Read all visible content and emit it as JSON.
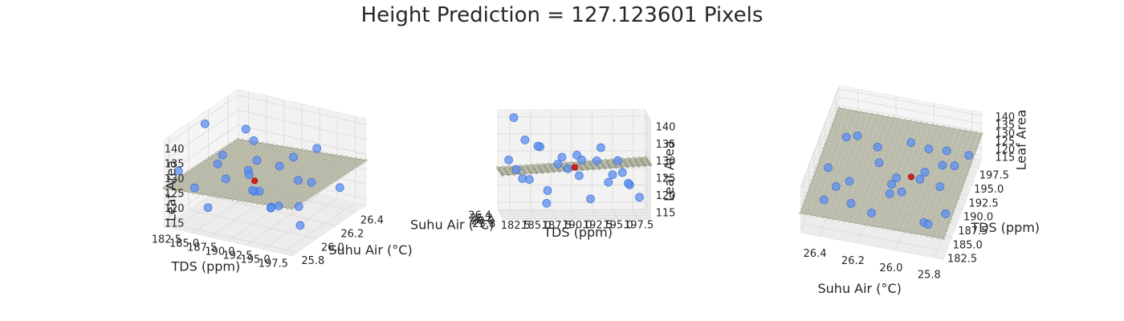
{
  "chart_data": {
    "type": "scatter",
    "title": "Height Prediction = 127.123601 Pixels",
    "xlabel": "Suhu Air (°C)",
    "ylabel": "TDS (ppm)",
    "zlabel": "Leaf Area",
    "xlim": [
      25.75,
      26.5
    ],
    "ylim": [
      181.0,
      199.0
    ],
    "zlim": [
      113,
      142
    ],
    "x_ticks": [
      "26.4",
      "26.2",
      "26.0",
      "25.8"
    ],
    "y_ticks": [
      "182.5",
      "185.0",
      "187.5",
      "190.0",
      "192.5",
      "195.0",
      "197.5"
    ],
    "z_ticks": [
      "140",
      "135",
      "130",
      "125",
      "120",
      "115"
    ],
    "grid": true,
    "prediction_plane": {
      "description_color": "#b8b8a8",
      "edge_color": "#7a7a6a",
      "z_at_corners": {
        "x_lo_y_lo": 126.0,
        "x_hi_y_lo": 125.2,
        "x_lo_y_hi": 128.8,
        "x_hi_y_hi": 128.0
      }
    },
    "series": [
      {
        "marker_color": "#5b8ef0",
        "points": [
          {
            "x": 26.05,
            "y": 182.6,
            "z": 141.5
          },
          {
            "x": 26.35,
            "y": 184.2,
            "z": 133.8
          },
          {
            "x": 26.3,
            "y": 186.0,
            "z": 132.0
          },
          {
            "x": 26.02,
            "y": 185.5,
            "z": 133.3
          },
          {
            "x": 25.95,
            "y": 190.2,
            "z": 130.9
          },
          {
            "x": 25.85,
            "y": 188.3,
            "z": 130.7
          },
          {
            "x": 25.82,
            "y": 192.5,
            "z": 129.8
          },
          {
            "x": 26.4,
            "y": 193.5,
            "z": 131.3
          },
          {
            "x": 25.78,
            "y": 195.6,
            "z": 126.5
          },
          {
            "x": 26.2,
            "y": 191.0,
            "z": 128.5
          },
          {
            "x": 26.1,
            "y": 188.0,
            "z": 127.7
          },
          {
            "x": 26.45,
            "y": 189.5,
            "z": 125.0
          },
          {
            "x": 25.9,
            "y": 194.0,
            "z": 123.2
          },
          {
            "x": 26.0,
            "y": 196.5,
            "z": 122.5
          },
          {
            "x": 25.88,
            "y": 183.5,
            "z": 124.4
          },
          {
            "x": 26.25,
            "y": 194.8,
            "z": 124.0
          },
          {
            "x": 26.15,
            "y": 183.0,
            "z": 126.0
          },
          {
            "x": 25.8,
            "y": 186.5,
            "z": 121.2
          },
          {
            "x": 26.38,
            "y": 197.0,
            "z": 120.5
          },
          {
            "x": 25.92,
            "y": 197.8,
            "z": 118.7
          },
          {
            "x": 26.12,
            "y": 192.0,
            "z": 117.5
          },
          {
            "x": 26.3,
            "y": 186.8,
            "z": 115.5
          },
          {
            "x": 25.98,
            "y": 190.5,
            "z": 124.8
          },
          {
            "x": 26.08,
            "y": 195.3,
            "z": 128.8
          },
          {
            "x": 26.42,
            "y": 184.8,
            "z": 122.0
          },
          {
            "x": 25.84,
            "y": 181.8,
            "z": 130.0
          }
        ]
      },
      {
        "name": "",
        "marker_color": "#d62020",
        "points": [
          {
            "x": 26.02,
            "y": 190.0,
            "z": 127.1236
          }
        ]
      }
    ],
    "views": [
      {
        "label": "view-1",
        "azim": -60,
        "elev": 30
      },
      {
        "label": "view-2",
        "azim": -92,
        "elev": 5
      },
      {
        "label": "view-3",
        "azim": -165,
        "elev": 62
      }
    ]
  }
}
